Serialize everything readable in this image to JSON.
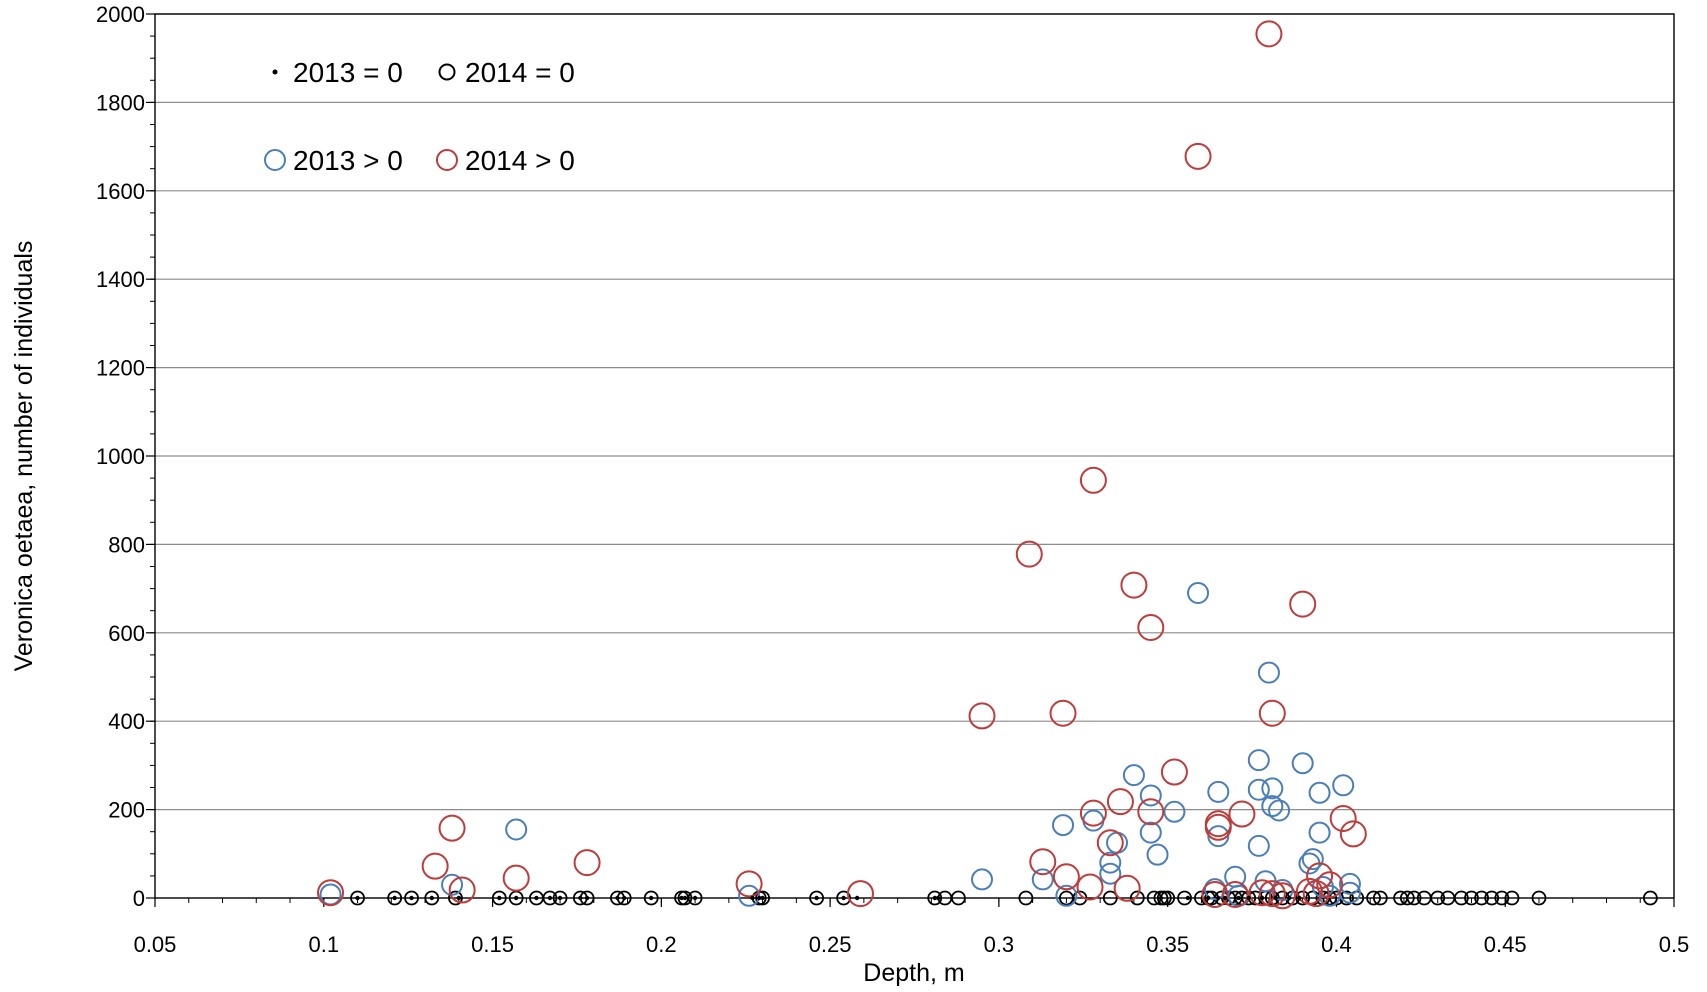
{
  "chart_data": {
    "type": "scatter",
    "title": "",
    "xlabel": "Depth, m",
    "ylabel": "Veronica oetaea, number of individuals",
    "xlim": [
      0.05,
      0.5
    ],
    "ylim": [
      0,
      2000
    ],
    "xticks": [
      "0.05",
      "0.1",
      "0.15",
      "0.2",
      "0.25",
      "0.3",
      "0.35",
      "0.4",
      "0.45",
      "0.5"
    ],
    "yticks": [
      "0",
      "200",
      "400",
      "600",
      "800",
      "1000",
      "1200",
      "1400",
      "1600",
      "1800",
      "2000"
    ],
    "grid": "horizontal",
    "legend_placement": "top-left",
    "colors": {
      "zero_2013": "#000000",
      "zero_2014": "#000000",
      "pos_2013": "#4a7ebb",
      "pos_2014": "#be3c3a",
      "grid": "#8c8c8c"
    },
    "series": [
      {
        "name": "2013 = 0",
        "marker": "dot",
        "x": [
          0.11,
          0.121,
          0.126,
          0.132,
          0.14,
          0.152,
          0.157,
          0.163,
          0.167,
          0.17,
          0.176,
          0.178,
          0.187,
          0.189,
          0.197,
          0.206,
          0.207,
          0.21,
          0.227,
          0.229,
          0.23,
          0.246,
          0.254,
          0.258,
          0.281,
          0.282,
          0.348,
          0.356,
          0.362,
          0.365,
          0.367,
          0.371,
          0.374,
          0.378,
          0.382,
          0.386,
          0.389
        ],
        "y": [
          0,
          0,
          0,
          0,
          0,
          0,
          0,
          0,
          0,
          0,
          0,
          0,
          0,
          0,
          0,
          0,
          0,
          0,
          0,
          0,
          0,
          0,
          0,
          0,
          0,
          0,
          0,
          0,
          0,
          0,
          0,
          0,
          0,
          0,
          0,
          0,
          0
        ]
      },
      {
        "name": "2014 = 0",
        "marker": "open-circle",
        "x": [
          0.11,
          0.121,
          0.126,
          0.132,
          0.139,
          0.152,
          0.157,
          0.163,
          0.167,
          0.17,
          0.176,
          0.178,
          0.187,
          0.189,
          0.197,
          0.206,
          0.207,
          0.21,
          0.229,
          0.23,
          0.246,
          0.254,
          0.281,
          0.284,
          0.288,
          0.308,
          0.32,
          0.324,
          0.333,
          0.341,
          0.346,
          0.348,
          0.349,
          0.35,
          0.355,
          0.36,
          0.362,
          0.363,
          0.366,
          0.368,
          0.37,
          0.372,
          0.374,
          0.376,
          0.379,
          0.381,
          0.384,
          0.387,
          0.39,
          0.393,
          0.396,
          0.398,
          0.4,
          0.403,
          0.406,
          0.411,
          0.413,
          0.419,
          0.421,
          0.423,
          0.426,
          0.43,
          0.433,
          0.437,
          0.44,
          0.443,
          0.446,
          0.449,
          0.452,
          0.46,
          0.493
        ],
        "y": [
          0,
          0,
          0,
          0,
          0,
          0,
          0,
          0,
          0,
          0,
          0,
          0,
          0,
          0,
          0,
          0,
          0,
          0,
          0,
          0,
          0,
          0,
          0,
          0,
          0,
          0,
          0,
          0,
          0,
          0,
          0,
          0,
          0,
          0,
          0,
          0,
          0,
          0,
          0,
          0,
          0,
          0,
          0,
          0,
          0,
          0,
          0,
          0,
          0,
          0,
          0,
          0,
          0,
          0,
          0,
          0,
          0,
          0,
          0,
          0,
          0,
          0,
          0,
          0,
          0,
          0,
          0,
          0,
          0,
          0,
          0
        ]
      },
      {
        "name": "2013 > 0",
        "marker": "open-circle",
        "x": [
          0.102,
          0.138,
          0.157,
          0.226,
          0.295,
          0.313,
          0.319,
          0.32,
          0.328,
          0.333,
          0.333,
          0.335,
          0.34,
          0.345,
          0.345,
          0.347,
          0.352,
          0.359,
          0.364,
          0.365,
          0.365,
          0.37,
          0.371,
          0.377,
          0.377,
          0.377,
          0.379,
          0.38,
          0.381,
          0.381,
          0.383,
          0.384,
          0.39,
          0.392,
          0.393,
          0.395,
          0.395,
          0.396,
          0.398,
          0.402,
          0.404,
          0.404
        ],
        "y": [
          8,
          30,
          155,
          5,
          42,
          42,
          165,
          5,
          175,
          80,
          55,
          125,
          278,
          232,
          148,
          98,
          195,
          690,
          20,
          240,
          140,
          48,
          5,
          312,
          245,
          118,
          38,
          510,
          248,
          208,
          198,
          18,
          305,
          78,
          88,
          238,
          148,
          25,
          5,
          255,
          32,
          12
        ]
      },
      {
        "name": "2014 > 0",
        "marker": "open-circle",
        "x": [
          0.102,
          0.133,
          0.138,
          0.141,
          0.157,
          0.178,
          0.226,
          0.259,
          0.295,
          0.309,
          0.313,
          0.319,
          0.32,
          0.327,
          0.328,
          0.328,
          0.333,
          0.336,
          0.338,
          0.34,
          0.345,
          0.345,
          0.352,
          0.359,
          0.364,
          0.365,
          0.365,
          0.37,
          0.372,
          0.378,
          0.38,
          0.381,
          0.381,
          0.384,
          0.39,
          0.392,
          0.394,
          0.395,
          0.398,
          0.402,
          0.405
        ],
        "y": [
          12,
          72,
          158,
          18,
          45,
          80,
          32,
          10,
          412,
          778,
          82,
          418,
          48,
          25,
          945,
          192,
          125,
          218,
          22,
          708,
          612,
          195,
          285,
          1678,
          8,
          160,
          168,
          8,
          190,
          12,
          1955,
          418,
          10,
          5,
          665,
          15,
          10,
          50,
          30,
          180,
          145
        ]
      }
    ],
    "legend": [
      {
        "label": "2013 = 0",
        "marker": "dot",
        "color": "#000000"
      },
      {
        "label": "2014 = 0",
        "marker": "open-circle",
        "color": "#000000"
      },
      {
        "label": "2013 > 0",
        "marker": "open-circle",
        "color": "#4a7ebb"
      },
      {
        "label": "2014 > 0",
        "marker": "open-circle",
        "color": "#be3c3a"
      }
    ]
  }
}
